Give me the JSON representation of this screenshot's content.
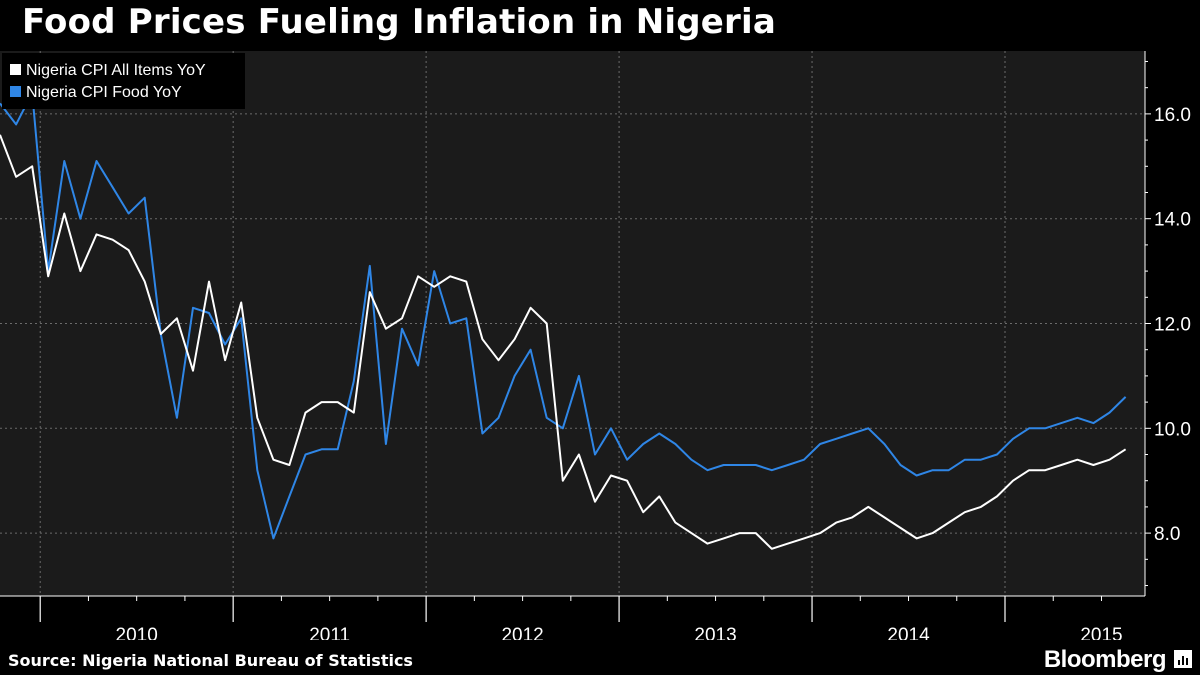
{
  "title": "Food Prices Fueling Inflation in Nigeria",
  "source": "Source: Nigeria National Bureau of Statistics",
  "brand": "Bloomberg",
  "colors": {
    "background": "#000000",
    "plot_background": "#1b1b1b",
    "all_items": "#ffffff",
    "food": "#2f86e6",
    "grid": "#6b6b6b"
  },
  "chart_data": {
    "type": "line",
    "xlabel": "",
    "ylabel": "",
    "x_axis_labels": [
      "2010",
      "2011",
      "2012",
      "2013",
      "2014",
      "2015"
    ],
    "y_ticks": [
      8.0,
      10.0,
      12.0,
      14.0,
      16.0
    ],
    "y_tick_labels": [
      "8.0",
      "10.0",
      "12.0",
      "14.0",
      "16.0"
    ],
    "ylim": [
      6.8,
      17.2
    ],
    "start_month": "2009-10",
    "end_month": "2015-08",
    "grid": true,
    "legend_position": "top-left",
    "series": [
      {
        "name": "Nigeria CPI All Items YoY",
        "color": "#ffffff",
        "values": [
          15.6,
          14.8,
          15.0,
          12.9,
          14.1,
          13.0,
          13.7,
          13.6,
          13.4,
          12.8,
          11.8,
          12.1,
          11.1,
          12.8,
          11.3,
          12.4,
          10.2,
          9.4,
          9.3,
          10.3,
          10.5,
          10.5,
          10.3,
          12.6,
          11.9,
          12.1,
          12.9,
          12.7,
          12.9,
          12.8,
          11.7,
          11.3,
          11.7,
          12.3,
          12.0,
          9.0,
          9.5,
          8.6,
          9.1,
          9.0,
          8.4,
          8.7,
          8.2,
          8.0,
          7.8,
          7.9,
          8.0,
          8.0,
          7.7,
          7.8,
          7.9,
          8.0,
          8.2,
          8.3,
          8.5,
          8.3,
          8.1,
          7.9,
          8.0,
          8.2,
          8.4,
          8.5,
          8.7,
          9.0,
          9.2,
          9.2,
          9.3,
          9.4,
          9.3,
          9.4,
          9.6
        ]
      },
      {
        "name": "Nigeria CPI Food YoY",
        "color": "#2f86e6",
        "values": [
          16.2,
          15.8,
          16.4,
          13.0,
          15.1,
          14.0,
          15.1,
          14.6,
          14.1,
          14.4,
          11.8,
          10.2,
          12.3,
          12.2,
          11.6,
          12.1,
          9.2,
          7.9,
          8.7,
          9.5,
          9.6,
          9.6,
          10.9,
          13.1,
          9.7,
          11.9,
          11.2,
          13.0,
          12.0,
          12.1,
          9.9,
          10.2,
          11.0,
          11.5,
          10.2,
          10.0,
          11.0,
          9.5,
          10.0,
          9.4,
          9.7,
          9.9,
          9.7,
          9.4,
          9.2,
          9.3,
          9.3,
          9.3,
          9.2,
          9.3,
          9.4,
          9.7,
          9.8,
          9.9,
          10.0,
          9.7,
          9.3,
          9.1,
          9.2,
          9.2,
          9.4,
          9.4,
          9.5,
          9.8,
          10.0,
          10.0,
          10.1,
          10.2,
          10.1,
          10.3,
          10.6
        ]
      }
    ]
  }
}
